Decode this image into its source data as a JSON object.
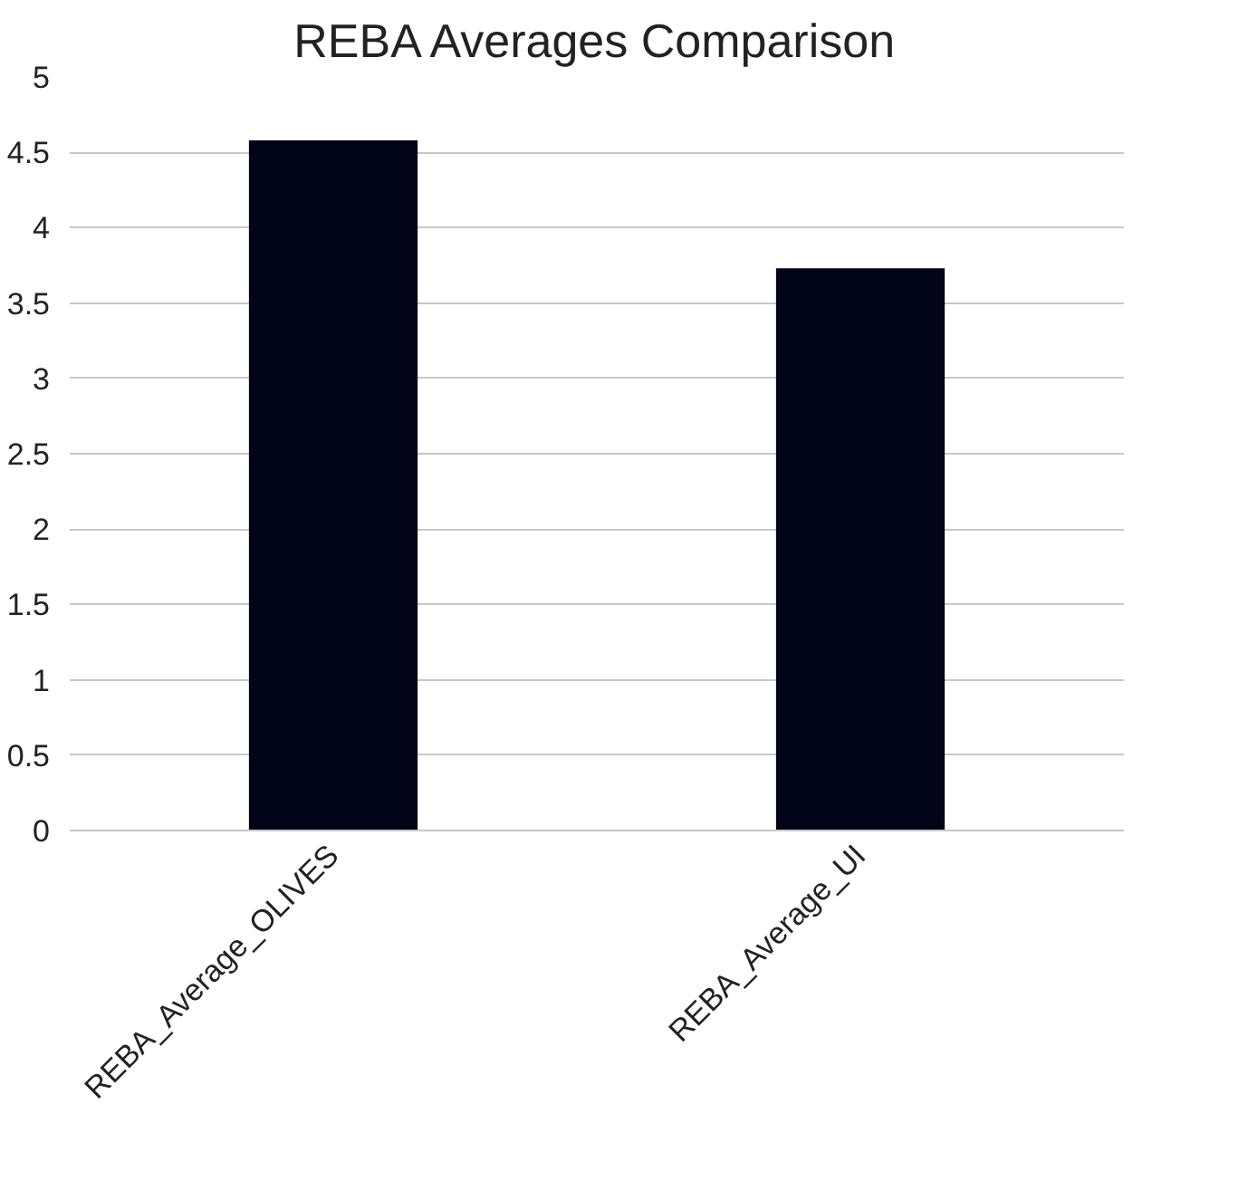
{
  "chart_data": {
    "type": "bar",
    "title": "REBA Averages Comparison",
    "categories": [
      "REBA_Average_OLIVES",
      "REBA_Average_UI"
    ],
    "values": [
      4.58,
      3.73
    ],
    "color": "#020418",
    "ylim": [
      0,
      5
    ],
    "yticks": [
      0,
      {
        "value": 0.5,
        "label": "0.5"
      },
      1,
      {
        "value": 1.5,
        "label": "1.5"
      },
      2,
      {
        "value": 2.5,
        "label": "2.5"
      },
      3,
      {
        "value": 3.5,
        "label": "3.5"
      },
      4,
      {
        "value": 4.5,
        "label": "4.5"
      },
      5
    ],
    "grid": "y"
  }
}
